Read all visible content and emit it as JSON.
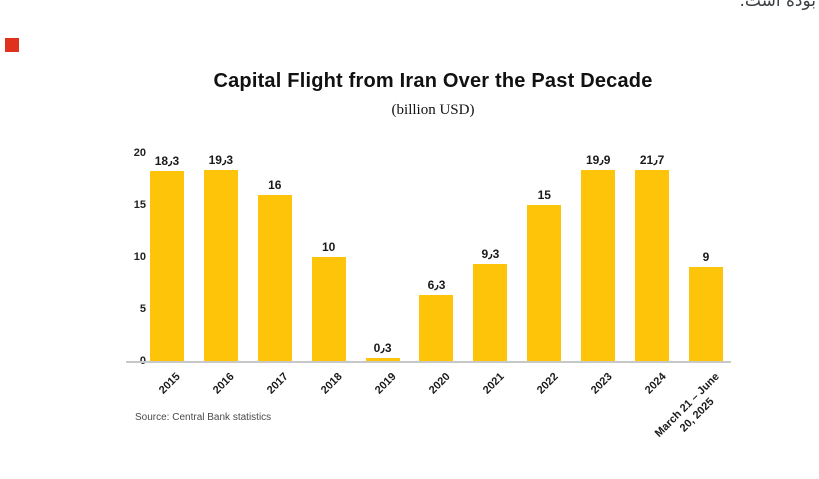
{
  "page": {
    "rtl_text": "بوده است.",
    "red_marker_color": "#e0301e"
  },
  "chart_data": {
    "type": "bar",
    "title": "Capital Flight from Iran Over the Past Decade",
    "subtitle": "(billion USD)",
    "categories": [
      "2015",
      "2016",
      "2017",
      "2018",
      "2019",
      "2020",
      "2021",
      "2022",
      "2023",
      "2024",
      "March 21 – June\n20, 2025"
    ],
    "values": [
      18.3,
      19.3,
      16,
      10,
      0.3,
      6.3,
      9.3,
      15,
      19.9,
      21.7,
      9
    ],
    "value_labels": [
      "18٫3",
      "19٫3",
      "16",
      "10",
      "0٫3",
      "6٫3",
      "9٫3",
      "15",
      "19٫9",
      "21٫7",
      "9"
    ],
    "y_ticks": [
      0,
      5,
      10,
      15,
      20
    ],
    "ylim": [
      0,
      20
    ],
    "bar_color": "#fdc40a",
    "axis_line_color": "#c8c8c8",
    "grid": false,
    "legend": false,
    "xlabel": "",
    "ylabel": "",
    "source": "Source: Central Bank statistics"
  }
}
